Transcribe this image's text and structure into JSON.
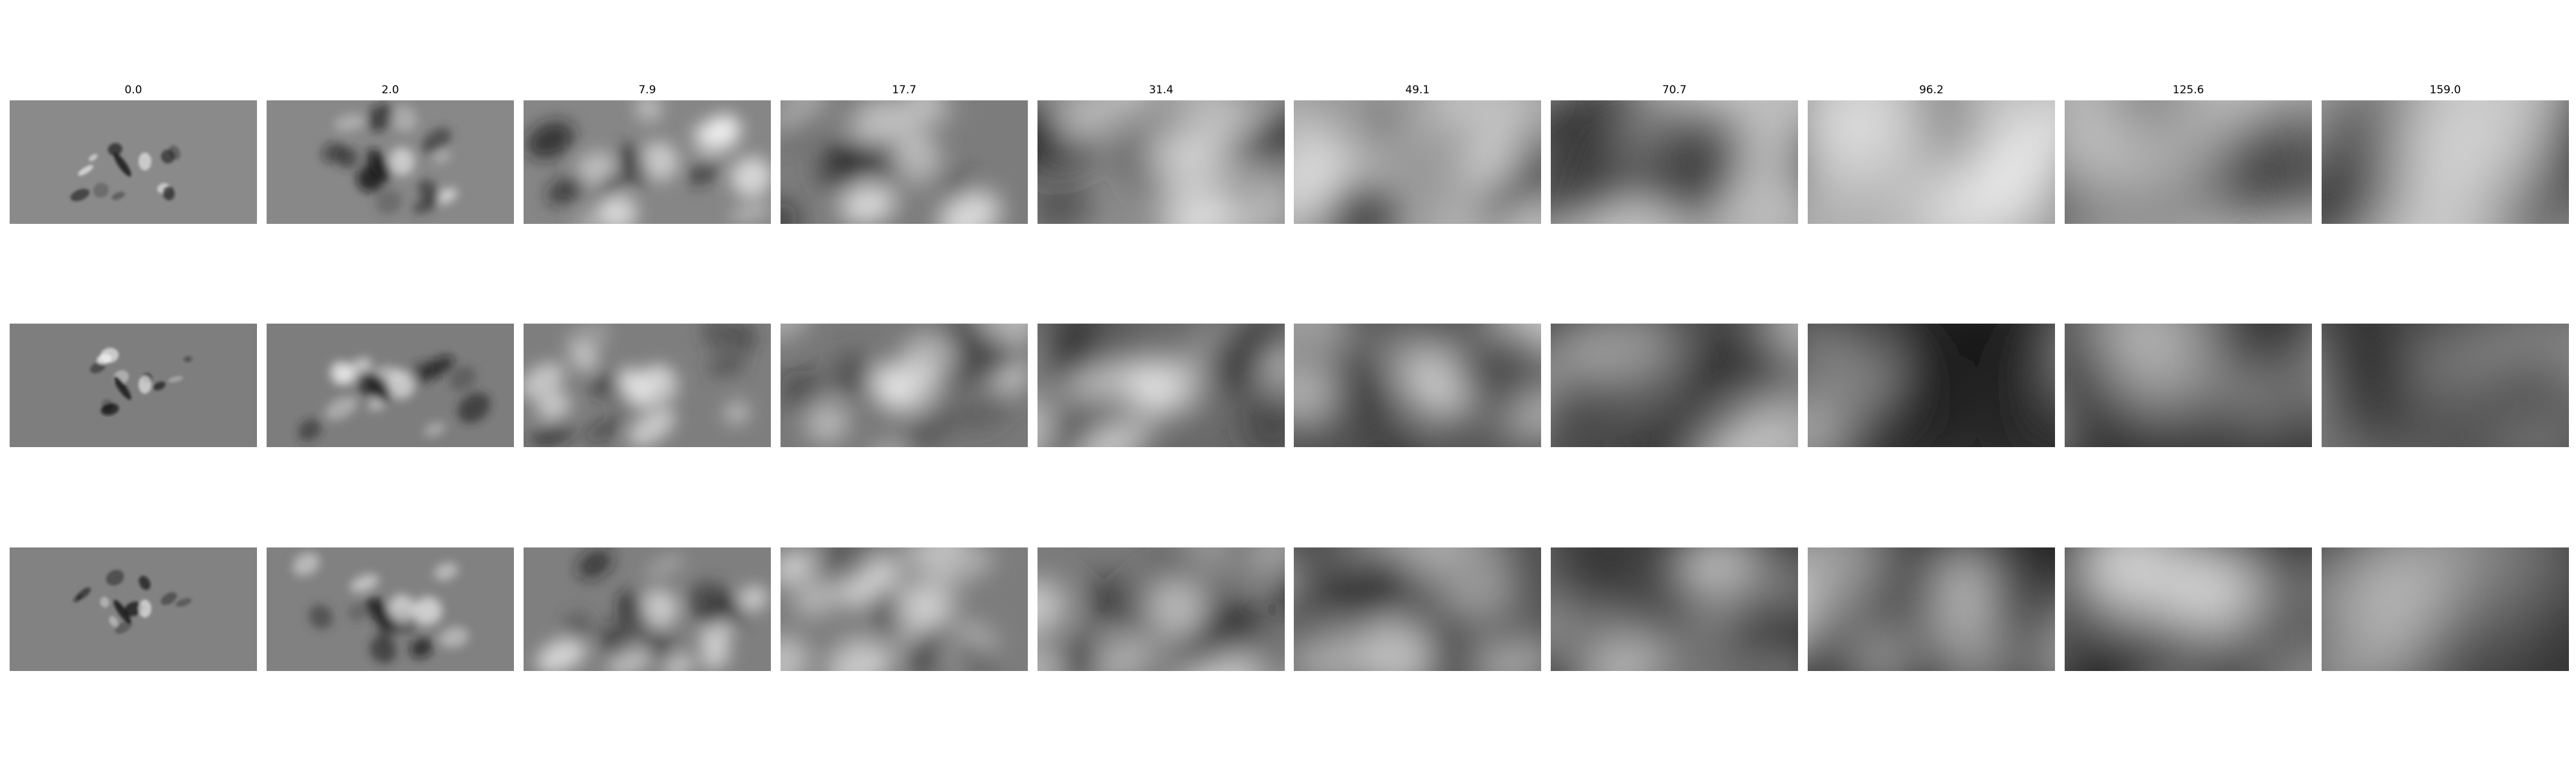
{
  "columns": [
    "0.0",
    "2.0",
    "7.9",
    "17.7",
    "31.4",
    "49.1",
    "70.7",
    "96.2",
    "125.6",
    "159.0"
  ],
  "rows": [
    {
      "background": "#808080",
      "tones": [
        "#8a8a8a",
        "#888888",
        "#868686",
        "#7c7c7c",
        "#8c8c8c",
        "#9a9a9a",
        "#a4a4a4",
        "#b2b2b2",
        "#bdbdbd",
        "#c6c6c6"
      ]
    },
    {
      "background": "#7c7c7c",
      "tones": [
        "#7e7e7e",
        "#7d7d7d",
        "#7e7e7e",
        "#787878",
        "#6a6a6a",
        "#555555",
        "#4a4a4a",
        "#363636",
        "#333333",
        "#3a3a3a"
      ]
    },
    {
      "background": "#7f7f7f",
      "tones": [
        "#828282",
        "#818181",
        "#7f7f7f",
        "#7c7c7c",
        "#7a7a7a",
        "#505050",
        "#3a3a3a",
        "#262626",
        "#2b2b2b",
        "#363636"
      ]
    }
  ]
}
